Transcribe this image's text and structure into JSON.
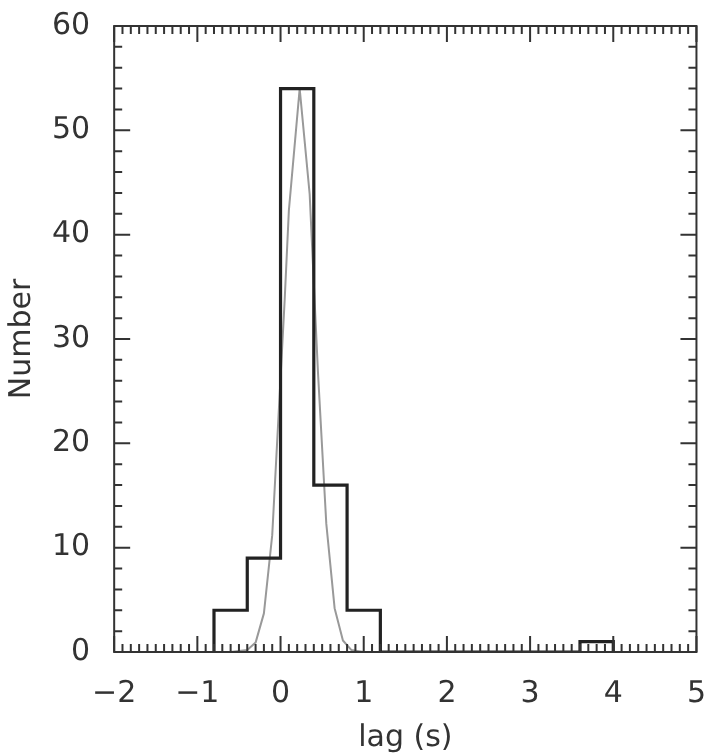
{
  "chart_data": {
    "type": "histogram",
    "xlabel": "lag (s)",
    "ylabel": "Number",
    "xlim": [
      -2,
      5
    ],
    "xticks": [
      -2,
      -1,
      0,
      1,
      2,
      3,
      4,
      5
    ],
    "ylim": [
      0,
      60
    ],
    "yticks": [
      0,
      10,
      20,
      30,
      40,
      50,
      60
    ],
    "series": [
      {
        "type": "histogram",
        "color": "#222222",
        "bins": [
          -0.8,
          -0.4,
          0,
          0.4,
          0.8,
          1.2,
          1.6,
          2.0,
          2.4,
          2.8,
          3.2,
          3.6,
          4.0
        ],
        "values": [
          4,
          9,
          54,
          16,
          4,
          0,
          0,
          0,
          0,
          0,
          0,
          1
        ]
      },
      {
        "type": "line",
        "color": "#999999",
        "x": [
          -0.6,
          -0.4,
          -0.3,
          -0.2,
          -0.1,
          0.05,
          0.1,
          0.23,
          0.35,
          0.45,
          0.55,
          0.65,
          0.75,
          0.85,
          1.0
        ],
        "values": [
          0,
          0.2,
          0.9,
          3.7,
          11.2,
          33.8,
          42.3,
          54,
          43.9,
          26.8,
          12.3,
          4.2,
          1.1,
          0.2,
          0
        ]
      }
    ]
  }
}
